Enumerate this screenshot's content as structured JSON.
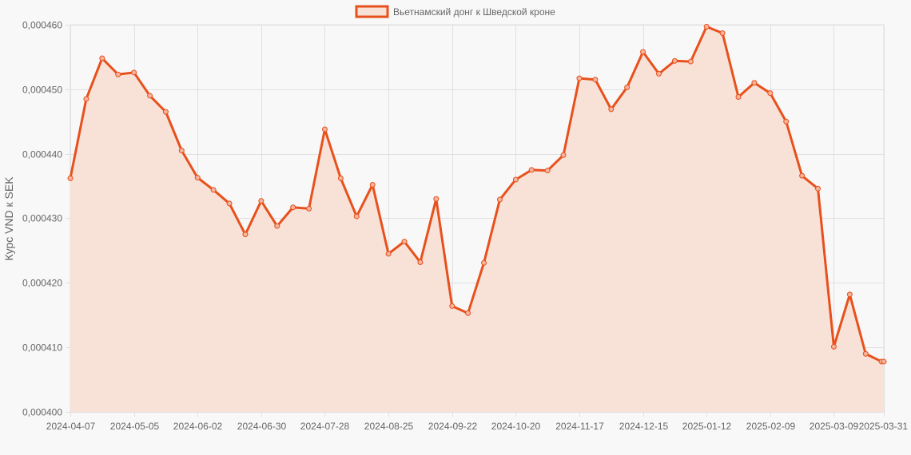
{
  "chart_data": {
    "type": "area",
    "legend_position": "top",
    "grid": true,
    "ylabel": "Курс VND к SEK",
    "ylim": [
      0.0004,
      0.00046
    ],
    "y_ticks": [
      "0,000400",
      "0,000410",
      "0,000420",
      "0,000430",
      "0,000440",
      "0,000450",
      "0,000460"
    ],
    "x_tick_labels": [
      "2024-04-07",
      "2024-05-05",
      "2024-06-02",
      "2024-06-30",
      "2024-07-28",
      "2024-08-25",
      "2024-09-22",
      "2024-10-20",
      "2024-11-17",
      "2024-12-15",
      "2025-01-12",
      "2025-02-09",
      "2025-03-09",
      "2025-03-31"
    ],
    "colors": {
      "line": "#e8501c",
      "fill": "#f8e2d8",
      "grid": "#e0e0e0",
      "text": "#666666"
    },
    "series": [
      {
        "name": "Вьетнамский донг к Шведской кроне",
        "x": [
          "2024-04-07",
          "2024-04-14",
          "2024-04-21",
          "2024-04-28",
          "2024-05-05",
          "2024-05-12",
          "2024-05-19",
          "2024-05-26",
          "2024-06-02",
          "2024-06-09",
          "2024-06-16",
          "2024-06-23",
          "2024-06-30",
          "2024-07-07",
          "2024-07-14",
          "2024-07-21",
          "2024-07-28",
          "2024-08-04",
          "2024-08-11",
          "2024-08-18",
          "2024-08-25",
          "2024-09-01",
          "2024-09-08",
          "2024-09-15",
          "2024-09-22",
          "2024-09-29",
          "2024-10-06",
          "2024-10-13",
          "2024-10-20",
          "2024-10-27",
          "2024-11-03",
          "2024-11-10",
          "2024-11-17",
          "2024-11-24",
          "2024-12-01",
          "2024-12-08",
          "2024-12-15",
          "2024-12-22",
          "2024-12-29",
          "2025-01-05",
          "2025-01-12",
          "2025-01-19",
          "2025-01-26",
          "2025-02-02",
          "2025-02-09",
          "2025-02-16",
          "2025-02-23",
          "2025-03-02",
          "2025-03-09",
          "2025-03-16",
          "2025-03-23",
          "2025-03-30",
          "2025-03-31"
        ],
        "values": [
          0.0004362,
          0.0004485,
          0.0004548,
          0.0004523,
          0.0004526,
          0.000449,
          0.0004465,
          0.0004405,
          0.0004363,
          0.0004344,
          0.0004323,
          0.0004275,
          0.0004327,
          0.0004288,
          0.0004317,
          0.0004315,
          0.0004438,
          0.0004362,
          0.0004303,
          0.0004352,
          0.0004245,
          0.0004264,
          0.0004232,
          0.000433,
          0.0004164,
          0.0004153,
          0.0004231,
          0.0004329,
          0.000436,
          0.0004375,
          0.0004374,
          0.0004398,
          0.0004517,
          0.0004515,
          0.0004469,
          0.0004503,
          0.0004558,
          0.0004524,
          0.0004544,
          0.0004543,
          0.0004597,
          0.0004587,
          0.0004488,
          0.000451,
          0.0004494,
          0.000445,
          0.0004366,
          0.0004346,
          0.0004101,
          0.0004182,
          0.000409,
          0.0004078,
          0.0004078
        ]
      }
    ]
  }
}
